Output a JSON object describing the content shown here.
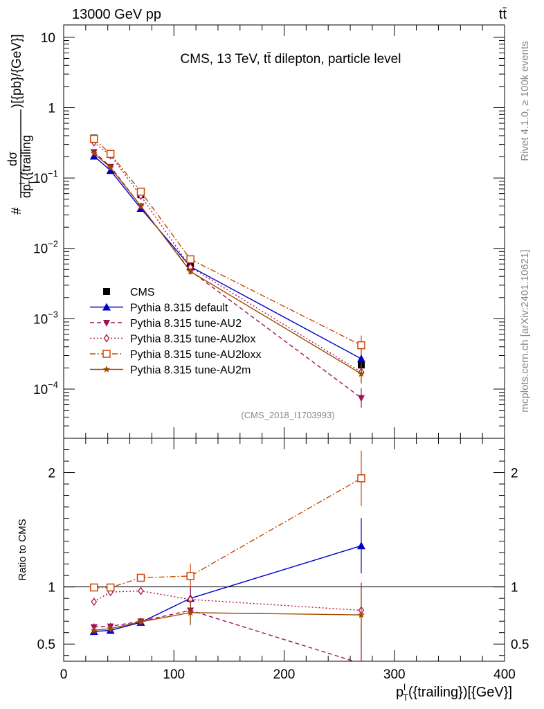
{
  "header": {
    "left": "13000 GeV pp",
    "right": "tt̄"
  },
  "side": {
    "rivet": "Rivet 4.1.0, ≥ 100k events",
    "mcplots": "mcplots.cern.ch [arXiv:2401.10621]"
  },
  "chart_data": [
    {
      "type": "line",
      "panel": "main",
      "title": "CMS, 13 TeV, tt̄ dilepton, particle level",
      "analysis_id": "(CMS_2018_I1703993)",
      "ylabel": "# dσ/dp_T^l({trailing}) )[{pb}/{GeV}]",
      "yscale": "log",
      "xlim": [
        0,
        400
      ],
      "ylim": [
        2e-05,
        15
      ],
      "ytick_labels": [
        {
          "value": 10,
          "label": "10"
        },
        {
          "value": 1,
          "label": "1"
        },
        {
          "value": 0.1,
          "label": "10",
          "exp": "−1"
        },
        {
          "value": 0.01,
          "label": "10",
          "exp": "−2"
        },
        {
          "value": 0.001,
          "label": "10",
          "exp": "−3"
        },
        {
          "value": 0.0001,
          "label": "10",
          "exp": "−4"
        }
      ],
      "x": [
        27.5,
        42.5,
        70,
        115,
        270
      ],
      "series": [
        {
          "name": "CMS",
          "color": "#000000",
          "marker": "filled-square",
          "dash": "none",
          "connect": false,
          "values": [
            0.37,
            0.22,
            0.058,
            0.006,
            0.00022
          ]
        },
        {
          "name": "Pythia 8.315 default",
          "color": "#0000cc",
          "marker": "filled-triangle-up",
          "dash": "solid",
          "connect": true,
          "values": [
            0.205,
            0.128,
            0.037,
            0.0055,
            0.00027
          ]
        },
        {
          "name": "Pythia 8.315 tune-AU2",
          "color": "#a0105a",
          "marker": "filled-triangle-down",
          "dash": "dashed",
          "connect": true,
          "values": [
            0.235,
            0.145,
            0.04,
            0.0048,
            7.5e-05
          ]
        },
        {
          "name": "Pythia 8.315 tune-AU2lox",
          "color": "#b01048",
          "marker": "open-diamond",
          "dash": "dotted",
          "connect": true,
          "values": [
            0.32,
            0.21,
            0.056,
            0.0054,
            0.000175
          ]
        },
        {
          "name": "Pythia 8.315 tune-AU2loxx",
          "color": "#cc4400",
          "marker": "open-square",
          "dash": "dashdot",
          "connect": true,
          "values": [
            0.36,
            0.22,
            0.064,
            0.007,
            0.00042
          ]
        },
        {
          "name": "Pythia 8.315 tune-AU2m",
          "color": "#9c4a00",
          "marker": "star",
          "dash": "solid",
          "connect": true,
          "values": [
            0.225,
            0.14,
            0.04,
            0.0047,
            0.000165
          ]
        }
      ]
    },
    {
      "type": "line",
      "panel": "ratio",
      "ylabel": "Ratio to CMS",
      "xlabel": "p_T^l({trailing})[{GeV}]",
      "xlim": [
        0,
        400
      ],
      "ylim": [
        0.35,
        2.3
      ],
      "ytick_labels": [
        {
          "value": 2,
          "label": "2"
        },
        {
          "value": 1,
          "label": "1"
        },
        {
          "value": 0.5,
          "label": "0.5"
        }
      ],
      "xtick_labels": [
        {
          "value": 0,
          "label": "0"
        },
        {
          "value": 100,
          "label": "100"
        },
        {
          "value": 200,
          "label": "200"
        },
        {
          "value": 300,
          "label": "300"
        },
        {
          "value": 400,
          "label": "400"
        }
      ],
      "reference": 1,
      "x": [
        27.5,
        42.5,
        70,
        115,
        270
      ],
      "series": [
        {
          "name": "Pythia 8.315 default",
          "values": [
            0.61,
            0.62,
            0.69,
            0.9,
            1.36
          ]
        },
        {
          "name": "Pythia 8.315 tune-AU2",
          "values": [
            0.65,
            0.655,
            0.7,
            0.795,
            0.33
          ]
        },
        {
          "name": "Pythia 8.315 tune-AU2lox",
          "values": [
            0.87,
            0.955,
            0.965,
            0.89,
            0.795
          ]
        },
        {
          "name": "Pythia 8.315 tune-AU2loxx",
          "values": [
            0.995,
            0.995,
            1.08,
            1.095,
            1.95
          ]
        },
        {
          "name": "Pythia 8.315 tune-AU2m",
          "values": [
            0.62,
            0.635,
            0.695,
            0.775,
            0.755
          ]
        }
      ]
    }
  ]
}
